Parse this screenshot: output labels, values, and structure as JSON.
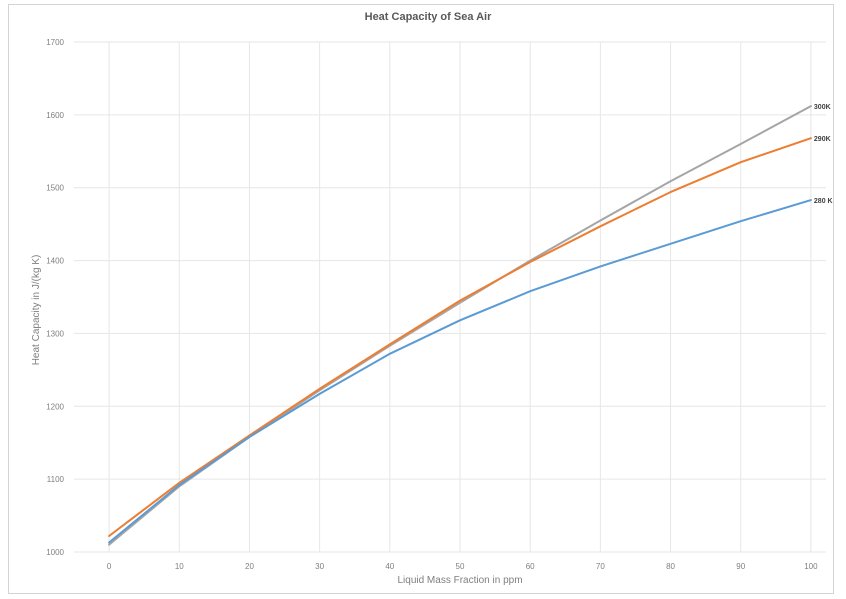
{
  "chart_data": {
    "type": "line",
    "title": "Heat Capacity of Sea Air",
    "xlabel": "Liquid Mass Fraction in ppm",
    "ylabel": "Heat Capacity in J/(kg K)",
    "xlim": [
      -5,
      105
    ],
    "ylim": [
      1000,
      1700
    ],
    "x_ticks": [
      0,
      10,
      20,
      30,
      40,
      50,
      60,
      70,
      80,
      90,
      100
    ],
    "y_ticks": [
      1000,
      1100,
      1200,
      1300,
      1400,
      1500,
      1600,
      1700
    ],
    "x": [
      0,
      10,
      20,
      30,
      40,
      50,
      60,
      70,
      80,
      90,
      100
    ],
    "grid": true,
    "legend": "labels at line ends",
    "series": [
      {
        "name": "300K",
        "color": "#a5a5a5",
        "values": [
          1010,
          1090,
          1158,
          1222,
          1283,
          1342,
          1400,
          1455,
          1509,
          1560,
          1612
        ]
      },
      {
        "name": "290K",
        "color": "#ed7d31",
        "values": [
          1022,
          1095,
          1160,
          1224,
          1285,
          1345,
          1398,
          1447,
          1494,
          1535,
          1568
        ]
      },
      {
        "name": "280 K",
        "color": "#5b9bd5",
        "values": [
          1013,
          1092,
          1158,
          1217,
          1272,
          1318,
          1358,
          1392,
          1423,
          1454,
          1483
        ]
      }
    ]
  }
}
